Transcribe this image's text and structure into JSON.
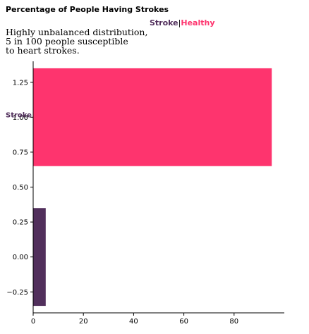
{
  "chart_data": {
    "type": "bar",
    "orientation": "horizontal",
    "title": "Percentage of People Having Strokes",
    "subtitle": [
      "Highly unbalanced distribution,",
      "5 in 100 people susceptible",
      "to heart strokes."
    ],
    "legend": [
      {
        "name": "Stroke",
        "color": "#512f5c"
      },
      {
        "name": "Healthy",
        "color": "#fe346e"
      }
    ],
    "legend_separator": "|",
    "legend_position": "top-center",
    "bars": [
      {
        "name": "Healthy",
        "y": 1,
        "value": 95,
        "height": 0.7,
        "color": "#fe346e"
      },
      {
        "name": "Stroke",
        "y": 0,
        "value": 5,
        "height": 0.7,
        "color": "#512f5c"
      }
    ],
    "bar_label": {
      "text": "Stroke",
      "color": "#512f5c",
      "y": 1
    },
    "xlim": [
      0,
      100
    ],
    "ylim": [
      -0.4,
      1.4
    ],
    "xticks": [
      0,
      20,
      40,
      60,
      80
    ],
    "yticks": [
      1.25,
      1.0,
      0.75,
      0.5,
      0.25,
      0.0,
      -0.25
    ],
    "xtick_labels": [
      "0",
      "20",
      "40",
      "60",
      "80"
    ],
    "ytick_labels": [
      "1.25",
      "1.00",
      "0.75",
      "0.50",
      "0.25",
      "0.00",
      "−0.25"
    ],
    "grid": false
  }
}
